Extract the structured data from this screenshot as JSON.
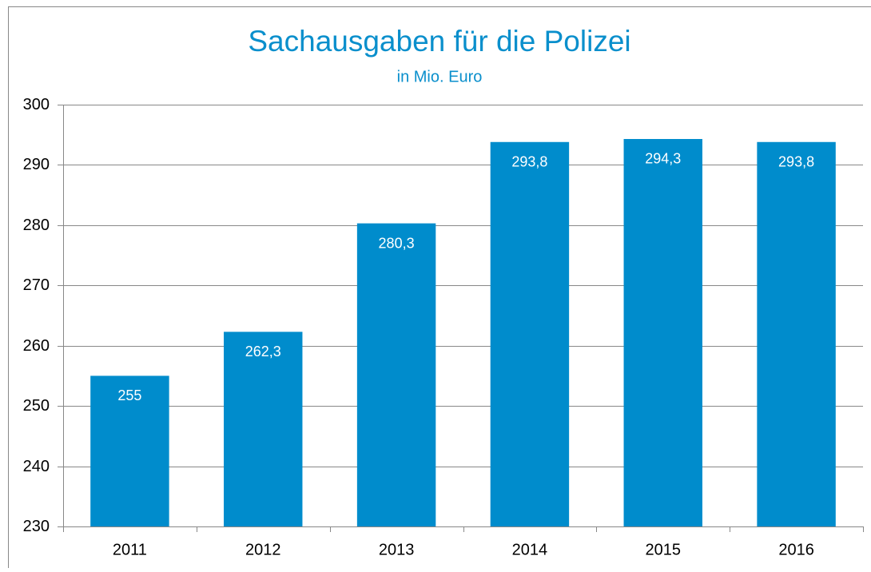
{
  "chart_data": {
    "type": "bar",
    "title": "Sachausgaben für die Polizei",
    "subtitle": "in Mio. Euro",
    "categories": [
      "2011",
      "2012",
      "2013",
      "2014",
      "2015",
      "2016"
    ],
    "values": [
      255,
      262.3,
      280.3,
      293.8,
      294.3,
      293.8
    ],
    "value_labels": [
      "255",
      "262,3",
      "280,3",
      "293,8",
      "294,3",
      "293,8"
    ],
    "color": "#008ccc",
    "ylim": [
      230,
      300
    ],
    "yticks": [
      230,
      240,
      250,
      260,
      270,
      280,
      290,
      300
    ],
    "grid": true
  }
}
